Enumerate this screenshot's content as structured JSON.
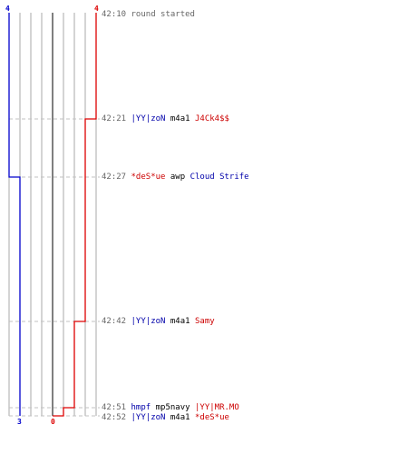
{
  "scores": {
    "blue_start": "4",
    "red_start": "4",
    "blue_end": "3",
    "red_end": "0"
  },
  "events": [
    {
      "time": "42:10",
      "text": "round started",
      "killer": "",
      "weapon": "",
      "victim": ""
    },
    {
      "time": "42:21",
      "text": "",
      "killer": "|YY|zoN",
      "killer_team": "blue",
      "weapon": "m4a1",
      "victim": "J4Ck4$$",
      "victim_team": "red"
    },
    {
      "time": "42:27",
      "text": "",
      "killer": "*deS*ue",
      "killer_team": "red",
      "weapon": "awp",
      "victim": "Cloud Strife",
      "victim_team": "blue"
    },
    {
      "time": "42:42",
      "text": "",
      "killer": "|YY|zoN",
      "killer_team": "blue",
      "weapon": "m4a1",
      "victim": "Samy",
      "victim_team": "red"
    },
    {
      "time": "42:51",
      "text": "",
      "killer": "hmpf",
      "killer_team": "blue",
      "weapon": "mp5navy",
      "victim": "|YY|MR.MO",
      "victim_team": "red"
    },
    {
      "time": "42:52",
      "text": "",
      "killer": "|YY|zoN",
      "killer_team": "blue",
      "weapon": "m4a1",
      "victim": "*deS*ue",
      "victim_team": "red"
    }
  ],
  "colors": {
    "blue": "#0000cc",
    "red": "#dd0000",
    "grid": "#aaaaaa",
    "dash": "#c0c0c0",
    "center": "#555555"
  }
}
